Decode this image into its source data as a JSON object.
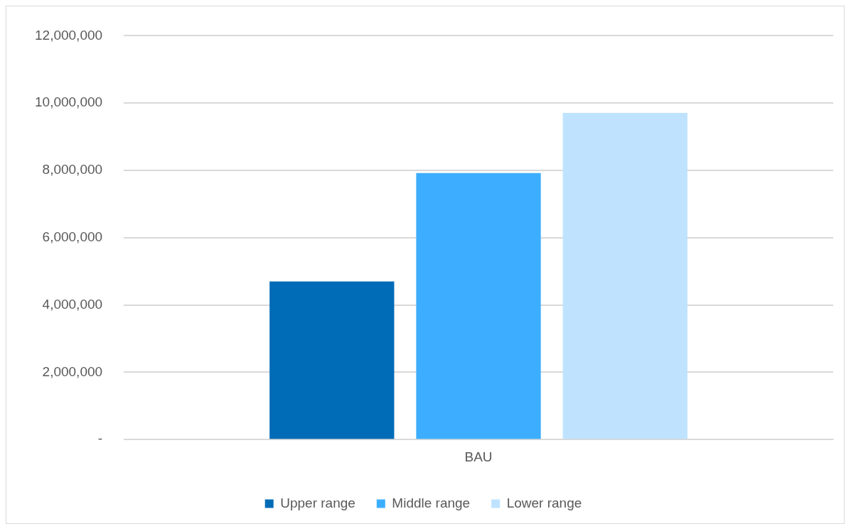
{
  "chart_data": {
    "type": "bar",
    "categories": [
      "BAU"
    ],
    "series": [
      {
        "name": "Upper range",
        "color": "#006bb6",
        "values": [
          4700000
        ]
      },
      {
        "name": "Middle range",
        "color": "#3daeff",
        "values": [
          7920000
        ]
      },
      {
        "name": "Lower range",
        "color": "#bfe3ff",
        "values": [
          9710000
        ]
      }
    ],
    "ylim": [
      0,
      12000000
    ],
    "yticks": [
      {
        "value": 0,
        "label": "-"
      },
      {
        "value": 2000000,
        "label": "2,000,000"
      },
      {
        "value": 4000000,
        "label": "4,000,000"
      },
      {
        "value": 6000000,
        "label": "6,000,000"
      },
      {
        "value": 8000000,
        "label": "8,000,000"
      },
      {
        "value": 10000000,
        "label": "10,000,000"
      },
      {
        "value": 12000000,
        "label": "12,000,000"
      }
    ],
    "grid": "y",
    "legend": "bottom"
  }
}
